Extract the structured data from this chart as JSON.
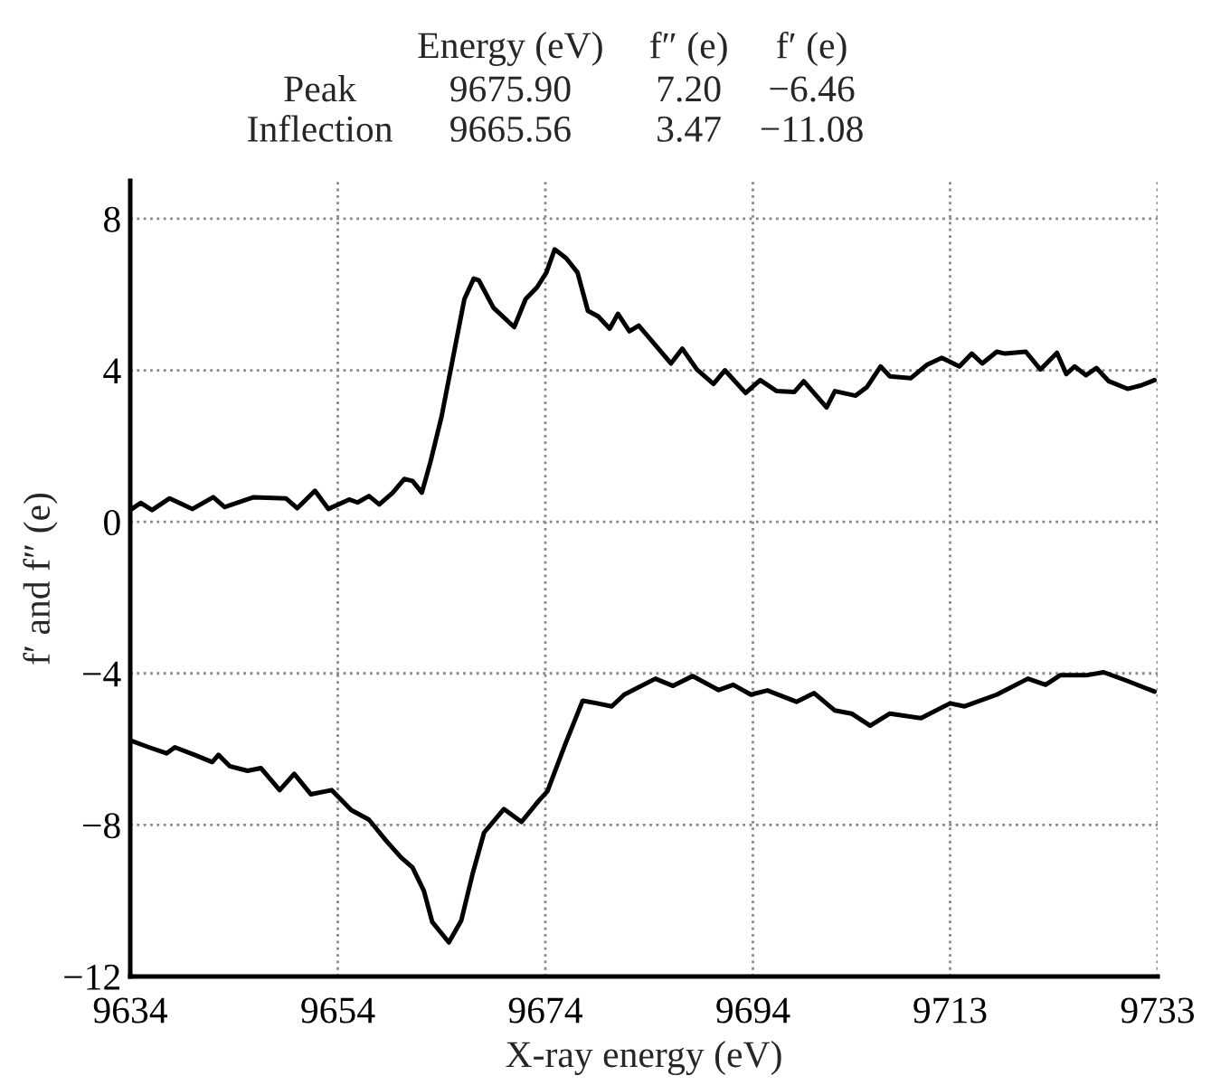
{
  "chart_data": {
    "type": "line",
    "xlabel": "X-ray energy (eV)",
    "ylabel": "f′ and f″ (e)",
    "annotations": [
      "Energy (eV)",
      "f″ (e)",
      "f′ (e)",
      "Peak",
      "9675.90",
      "7.20",
      "−6.46",
      "Inflection",
      "9665.56",
      "3.47",
      "−11.08"
    ],
    "xlim": [
      9634,
      9733
    ],
    "xticks": [
      9634,
      9654,
      9674,
      9694,
      9713,
      9733
    ],
    "ylim": [
      -12,
      9
    ],
    "yticks": [
      -12,
      -8,
      -4,
      0,
      4,
      8
    ],
    "grid": true,
    "line_style": "solid",
    "series": [
      {
        "color": "#000000",
        "x": [
          9634,
          9635,
          9636.1,
          9637.8,
          9640,
          9642,
          9643.1,
          9645.9,
          9649,
          9650.1,
          9651.8,
          9653.1,
          9655.1,
          9655.9,
          9657,
          9658,
          9659.3,
          9660.4,
          9661.2,
          9662.1,
          9662.9,
          9664,
          9665.1,
          9666.2,
          9667.1,
          9667.6,
          9669,
          9671,
          9672.1,
          9673.2,
          9674.1,
          9674.9,
          9676,
          9677.1,
          9678.1,
          9679.1,
          9680.2,
          9681,
          9682.1,
          9683,
          9686.1,
          9687.2,
          9688.6,
          9690.2,
          9691.3,
          9693.3,
          9694.7,
          9696.3,
          9698,
          9698.9,
          9701.1,
          9701.9,
          9703.9,
          9705,
          9706.3,
          9707.2,
          9709.2,
          9710.8,
          9712.2,
          9713.9,
          9715.1,
          9716.1,
          9717.5,
          9718.3,
          9720.3,
          9721.7,
          9723.3,
          9724.2,
          9725,
          9726.1,
          9727.1,
          9728.3,
          9730.1,
          9731.4,
          9732.7
        ],
        "values": [
          0.31,
          0.5,
          0.31,
          0.62,
          0.34,
          0.65,
          0.39,
          0.65,
          0.62,
          0.36,
          0.82,
          0.34,
          0.59,
          0.51,
          0.68,
          0.46,
          0.77,
          1.13,
          1.08,
          0.77,
          1.55,
          2.78,
          4.33,
          5.88,
          6.42,
          6.37,
          5.65,
          5.14,
          5.88,
          6.19,
          6.58,
          7.19,
          6.96,
          6.58,
          5.57,
          5.42,
          5.1,
          5.49,
          5.03,
          5.18,
          4.18,
          4.57,
          4.02,
          3.64,
          4.0,
          3.4,
          3.74,
          3.45,
          3.43,
          3.71,
          3.02,
          3.45,
          3.33,
          3.56,
          4.1,
          3.84,
          3.79,
          4.15,
          4.33,
          4.1,
          4.44,
          4.18,
          4.49,
          4.44,
          4.49,
          4.02,
          4.46,
          3.9,
          4.1,
          3.87,
          4.06,
          3.71,
          3.51,
          3.6,
          3.74
        ]
      },
      {
        "color": "#000000",
        "x": [
          9634,
          9635.8,
          9637.5,
          9638.3,
          9640.2,
          9641.9,
          9642.5,
          9643.6,
          9645.3,
          9646.6,
          9648.4,
          9649.8,
          9651.4,
          9653.4,
          9655.3,
          9657,
          9658.7,
          9660.1,
          9661.2,
          9662.3,
          9663.1,
          9664.7,
          9665.9,
          9667,
          9668.1,
          9670,
          9671.7,
          9673.4,
          9674.2,
          9675.9,
          9677.6,
          9679,
          9680.4,
          9681.6,
          9684.6,
          9686.3,
          9688.2,
          9690.7,
          9692.1,
          9693.8,
          9695.4,
          9698.2,
          9699.9,
          9701.9,
          9703.5,
          9705.3,
          9707.2,
          9710.2,
          9713,
          9714.4,
          9717.5,
          9720.5,
          9722.2,
          9723.6,
          9726.1,
          9727.8,
          9730,
          9732.7
        ],
        "values": [
          -5.77,
          -5.95,
          -6.11,
          -5.95,
          -6.15,
          -6.34,
          -6.15,
          -6.45,
          -6.57,
          -6.5,
          -7.08,
          -6.65,
          -7.19,
          -7.08,
          -7.61,
          -7.86,
          -8.43,
          -8.86,
          -9.12,
          -9.74,
          -10.56,
          -11.1,
          -10.52,
          -9.28,
          -8.2,
          -7.58,
          -7.92,
          -7.35,
          -7.11,
          -5.88,
          -4.72,
          -4.79,
          -4.87,
          -4.56,
          -4.14,
          -4.33,
          -4.07,
          -4.44,
          -4.3,
          -4.56,
          -4.45,
          -4.75,
          -4.52,
          -4.98,
          -5.06,
          -5.38,
          -5.06,
          -5.18,
          -4.79,
          -4.87,
          -4.56,
          -4.14,
          -4.3,
          -4.05,
          -4.05,
          -3.97,
          -4.19,
          -4.48
        ]
      }
    ]
  }
}
